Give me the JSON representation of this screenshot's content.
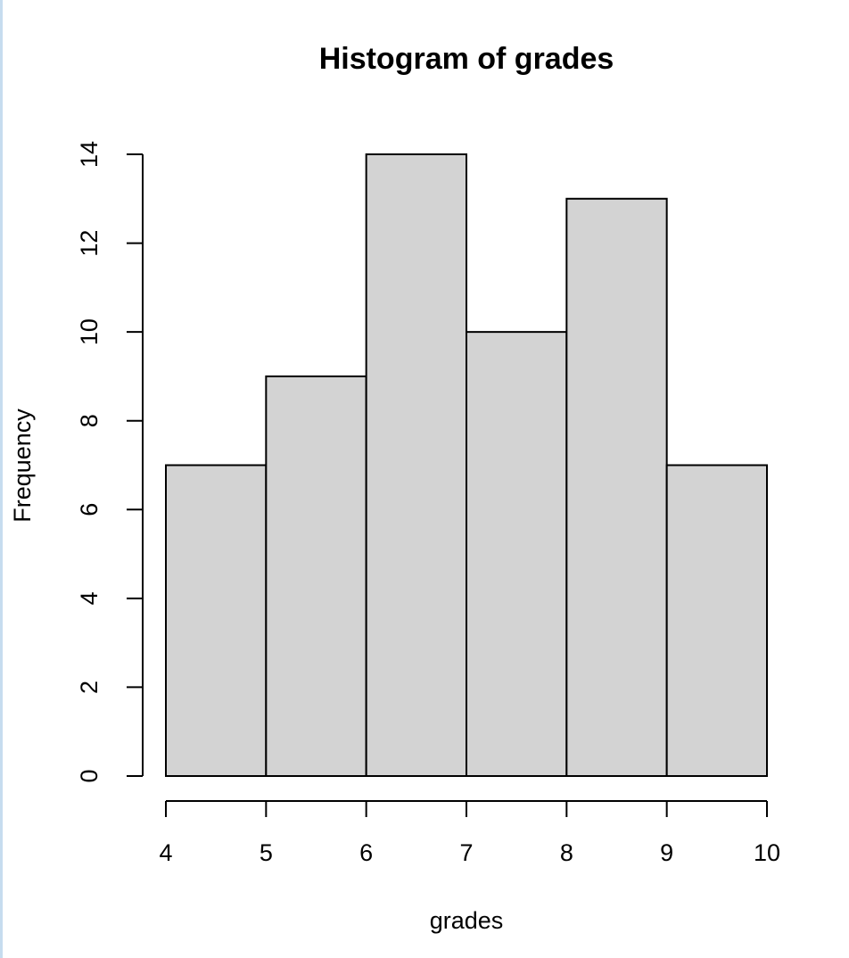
{
  "chart_data": {
    "type": "histogram",
    "title": "Histogram of grades",
    "x_label": "grades",
    "y_label": "Frequency",
    "bins": [
      4,
      5,
      6,
      7,
      8,
      9,
      10
    ],
    "counts": [
      7,
      9,
      14,
      10,
      13,
      7
    ],
    "color": "#d3d3d3",
    "xlim": [
      4,
      10
    ],
    "xticks": [
      4,
      5,
      6,
      7,
      8,
      9,
      10
    ],
    "ylim": [
      0,
      14
    ],
    "yticks": [
      0,
      2,
      4,
      6,
      8,
      10,
      12,
      14
    ],
    "grid": false
  }
}
